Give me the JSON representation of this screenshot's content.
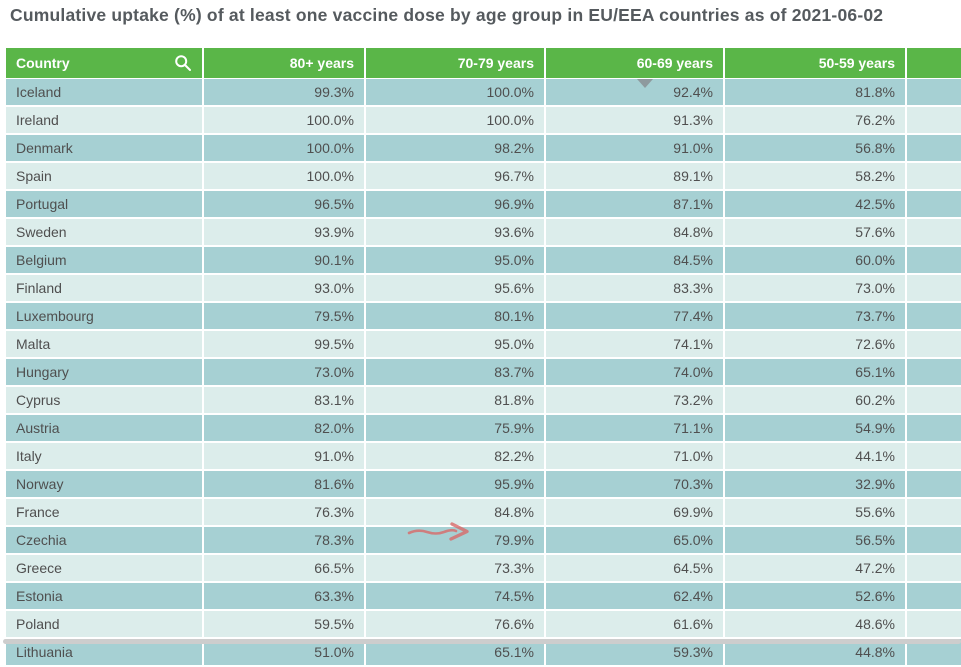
{
  "title": "Cumulative uptake (%) of at least one vaccine dose by age group in EU/EEA countries as of 2021-06-02",
  "colors": {
    "header_green": "#5ab648",
    "row_dark_teal": "#a6d0d3",
    "row_light_teal": "#dcedeb",
    "title_text": "#555a5e",
    "cell_text": "#4f4f4f",
    "sort_triangle_gray": "#8a9094",
    "arrow_red": "#d96a6a",
    "scrollbar_gray": "#cdcdcd"
  },
  "table": {
    "columns": [
      {
        "label": "Country",
        "align": "left",
        "icon": "search-icon"
      },
      {
        "label": "80+ years",
        "align": "right"
      },
      {
        "label": "70-79 years",
        "align": "right"
      },
      {
        "label": "60-69 years",
        "align": "right"
      },
      {
        "label": "50-59 years",
        "align": "right"
      },
      {
        "label": "",
        "align": "right"
      }
    ],
    "rows": [
      {
        "country": "Iceland",
        "values": [
          "99.3%",
          "100.0%",
          "92.4%",
          "81.8%"
        ]
      },
      {
        "country": "Ireland",
        "values": [
          "100.0%",
          "100.0%",
          "91.3%",
          "76.2%"
        ]
      },
      {
        "country": "Denmark",
        "values": [
          "100.0%",
          "98.2%",
          "91.0%",
          "56.8%"
        ]
      },
      {
        "country": "Spain",
        "values": [
          "100.0%",
          "96.7%",
          "89.1%",
          "58.2%"
        ]
      },
      {
        "country": "Portugal",
        "values": [
          "96.5%",
          "96.9%",
          "87.1%",
          "42.5%"
        ]
      },
      {
        "country": "Sweden",
        "values": [
          "93.9%",
          "93.6%",
          "84.8%",
          "57.6%"
        ]
      },
      {
        "country": "Belgium",
        "values": [
          "90.1%",
          "95.0%",
          "84.5%",
          "60.0%"
        ]
      },
      {
        "country": "Finland",
        "values": [
          "93.0%",
          "95.6%",
          "83.3%",
          "73.0%"
        ]
      },
      {
        "country": "Luxembourg",
        "values": [
          "79.5%",
          "80.1%",
          "77.4%",
          "73.7%"
        ]
      },
      {
        "country": "Malta",
        "values": [
          "99.5%",
          "95.0%",
          "74.1%",
          "72.6%"
        ]
      },
      {
        "country": "Hungary",
        "values": [
          "73.0%",
          "83.7%",
          "74.0%",
          "65.1%"
        ]
      },
      {
        "country": "Cyprus",
        "values": [
          "83.1%",
          "81.8%",
          "73.2%",
          "60.2%"
        ]
      },
      {
        "country": "Austria",
        "values": [
          "82.0%",
          "75.9%",
          "71.1%",
          "54.9%"
        ]
      },
      {
        "country": "Italy",
        "values": [
          "91.0%",
          "82.2%",
          "71.0%",
          "44.1%"
        ]
      },
      {
        "country": "Norway",
        "values": [
          "81.6%",
          "95.9%",
          "70.3%",
          "32.9%"
        ]
      },
      {
        "country": "France",
        "values": [
          "76.3%",
          "84.8%",
          "69.9%",
          "55.6%"
        ]
      },
      {
        "country": "Czechia",
        "values": [
          "78.3%",
          "79.9%",
          "65.0%",
          "56.5%"
        ]
      },
      {
        "country": "Greece",
        "values": [
          "66.5%",
          "73.3%",
          "64.5%",
          "47.2%"
        ]
      },
      {
        "country": "Estonia",
        "values": [
          "63.3%",
          "74.5%",
          "62.4%",
          "52.6%"
        ]
      },
      {
        "country": "Poland",
        "values": [
          "59.5%",
          "76.6%",
          "61.6%",
          "48.6%"
        ]
      },
      {
        "country": "Lithuania",
        "values": [
          "51.0%",
          "65.1%",
          "59.3%",
          "44.8%"
        ]
      }
    ]
  },
  "annotations": {
    "sort_indicator": {
      "type": "triangle-down",
      "column": "60-69 years",
      "color": "#8a9094"
    },
    "arrow": {
      "type": "hand-drawn-arrow-right",
      "points_at": "Greece 70-79 years 73.3%",
      "color": "#d96a6a"
    }
  }
}
